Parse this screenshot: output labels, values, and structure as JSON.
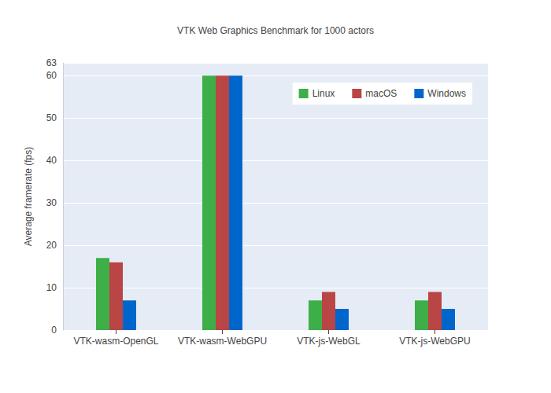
{
  "chart_data": {
    "type": "bar",
    "title": "VTK Web Graphics Benchmark for 1000 actors",
    "y_label": "Average framerate (fps)",
    "categories": [
      "VTK-wasm-OpenGL",
      "VTK-wasm-WebGPU",
      "VTK-js-WebGL",
      "VTK-js-WebGPU"
    ],
    "series": [
      {
        "name": "Linux",
        "color": "#3eaf48",
        "values": [
          17,
          60,
          7,
          7
        ]
      },
      {
        "name": "macOS",
        "color": "#b94545",
        "values": [
          16,
          60,
          9,
          9
        ]
      },
      {
        "name": "Windows",
        "color": "#0066cc",
        "values": [
          7,
          60,
          5,
          5
        ]
      }
    ],
    "ylim": [
      0,
      63
    ],
    "yticks": [
      0,
      10,
      20,
      30,
      40,
      50,
      60
    ],
    "grid": true,
    "legend": "upper right"
  }
}
